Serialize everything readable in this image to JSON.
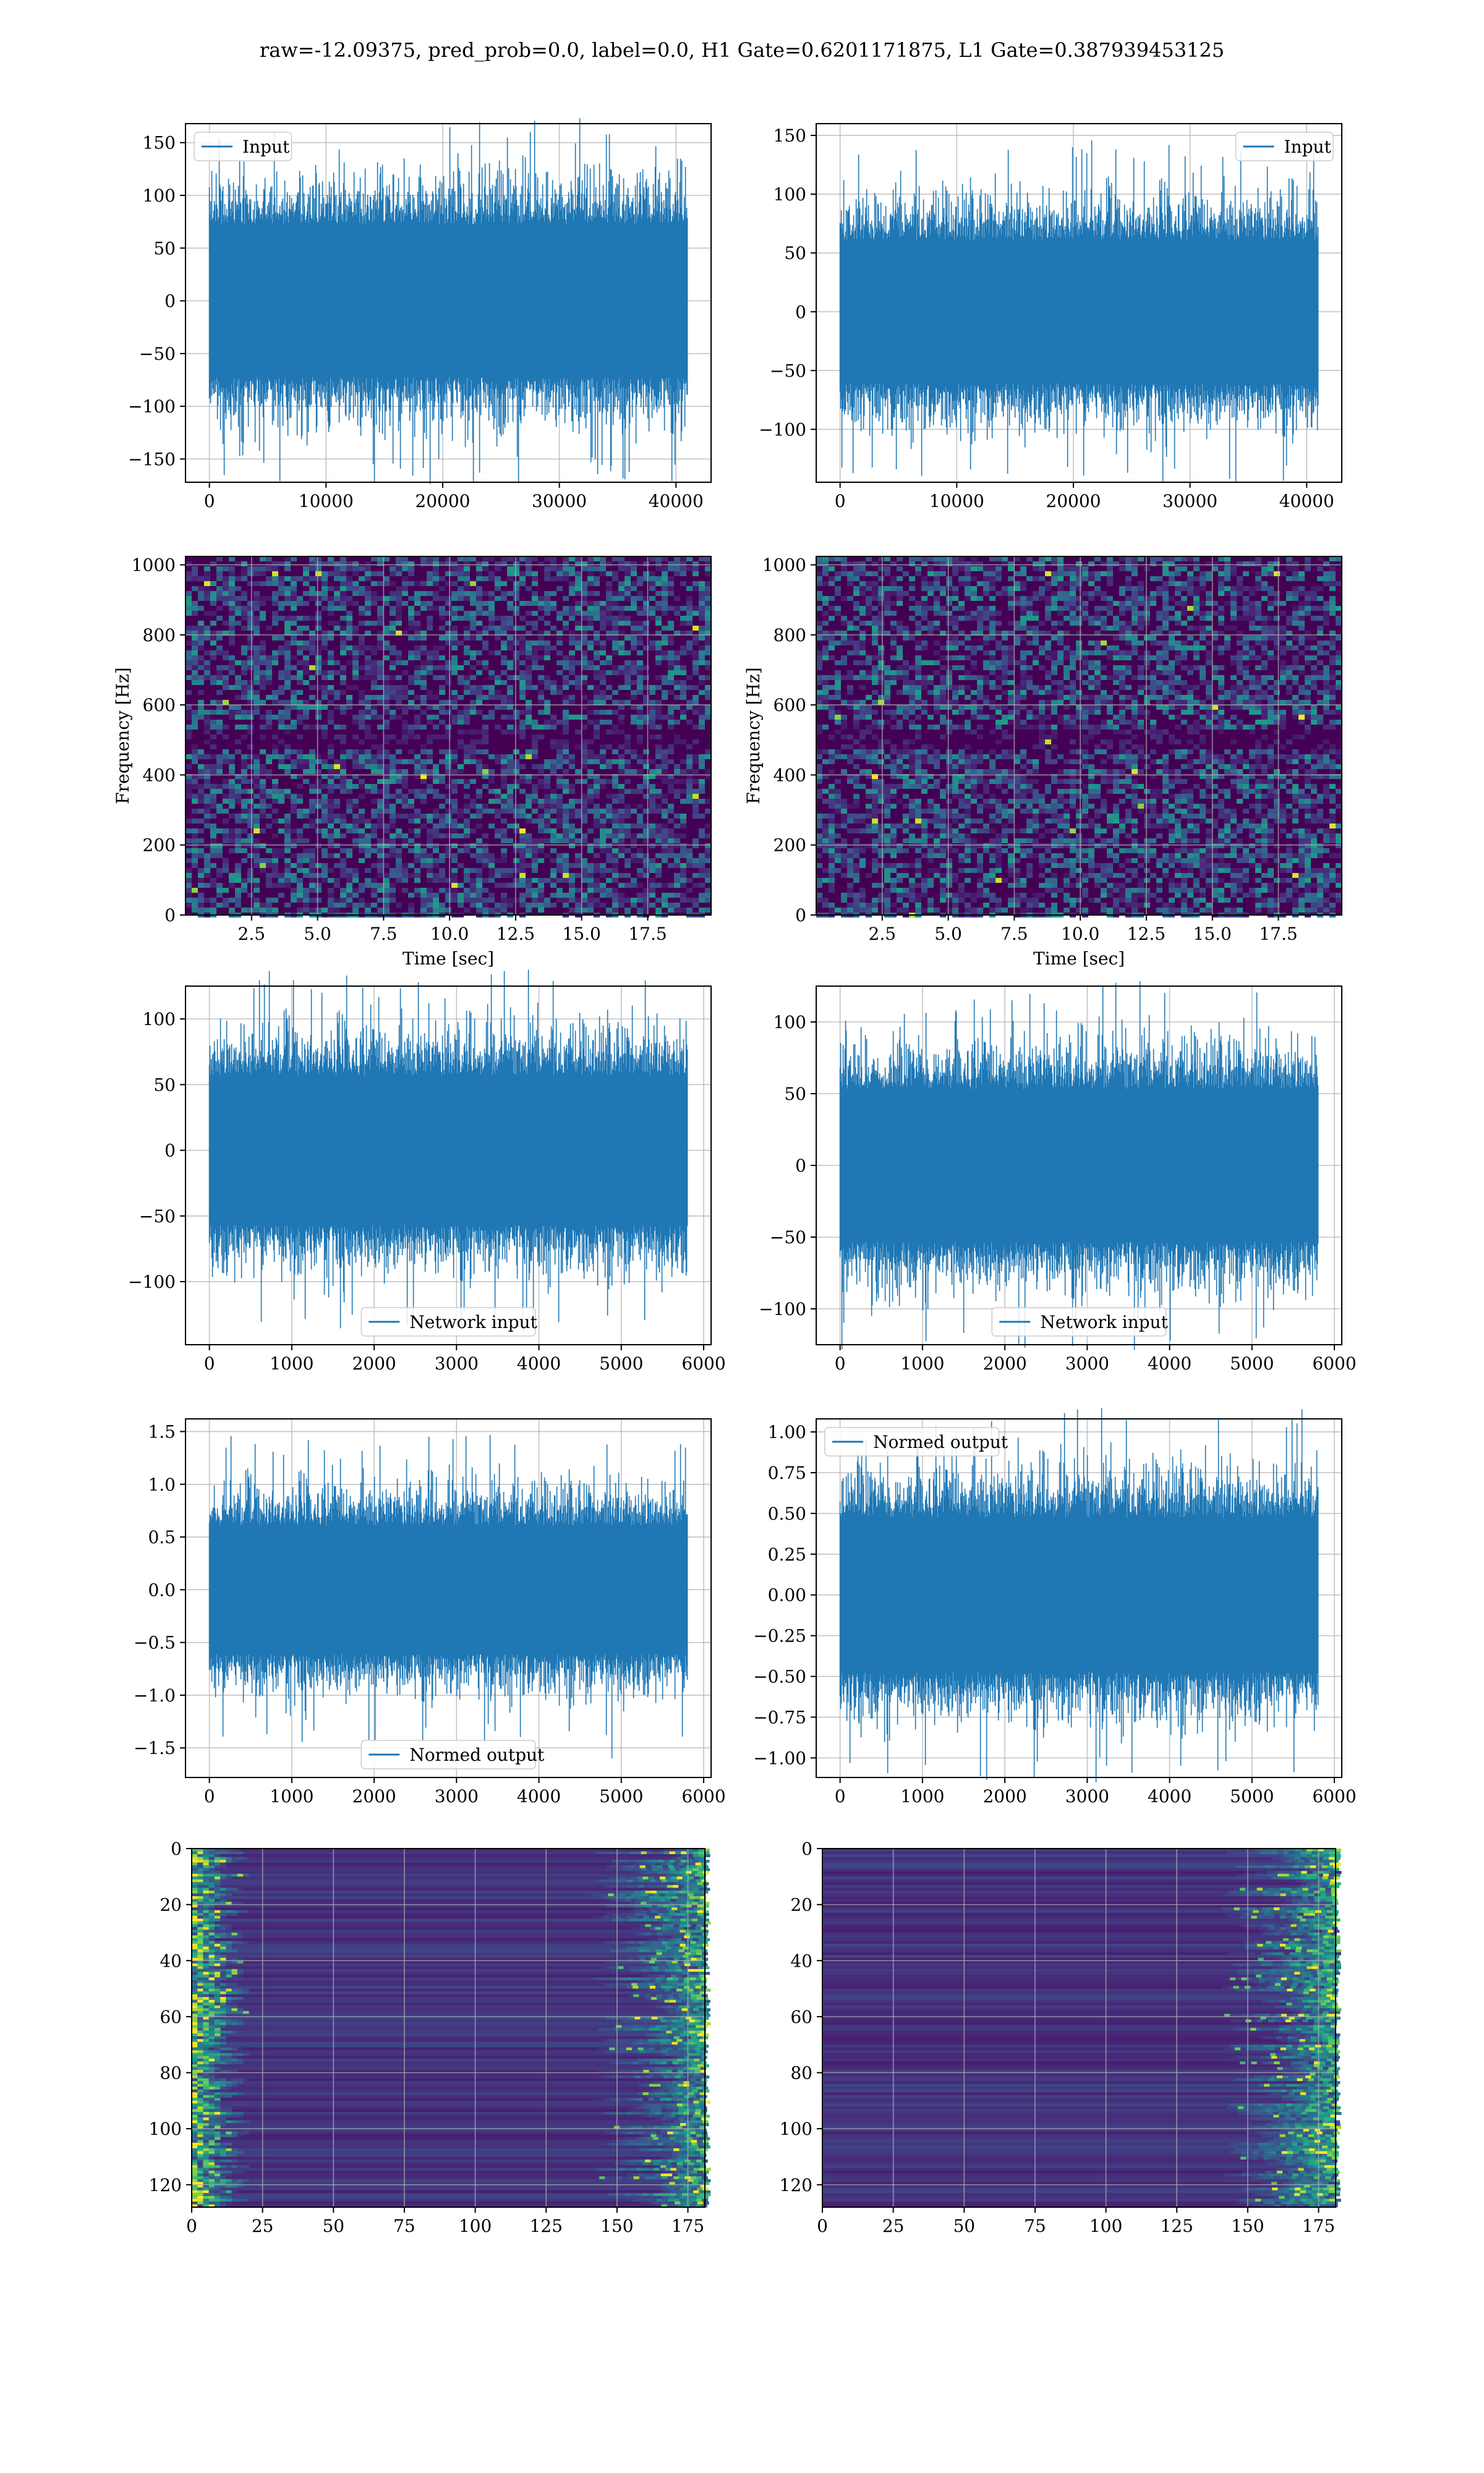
{
  "figure": {
    "suptitle": "raw=-12.09375, pred_prob=0.0, label=0.0, H1 Gate=0.6201171875, L1 Gate=0.387939453125"
  },
  "colors": {
    "line": "#1f77b4",
    "grid": "#b0b0b0",
    "axis": "#000000",
    "hot": "#fde725",
    "cool": "#440154"
  },
  "chart_data": [
    {
      "id": "p00",
      "type": "line",
      "series": [
        {
          "name": "Input",
          "n": 40960,
          "amp": 38,
          "peak": 155,
          "min": -155
        }
      ],
      "x": [
        0,
        40960
      ],
      "xlim": [
        -2048,
        43008
      ],
      "ylim": [
        -172,
        168
      ],
      "xticks": [
        0,
        10000,
        20000,
        30000,
        40000
      ],
      "xticklabels": [
        "0",
        "10000",
        "20000",
        "30000",
        "40000"
      ],
      "yticks": [
        -150,
        -100,
        -50,
        0,
        50,
        100,
        150
      ],
      "yticklabels": [
        "−150",
        "−100",
        "−50",
        "0",
        "50",
        "100",
        "150"
      ],
      "legend": {
        "loc": "upper left"
      },
      "grid": true
    },
    {
      "id": "p01",
      "type": "line",
      "series": [
        {
          "name": "Input",
          "n": 40960,
          "amp": 32,
          "peak": 140,
          "min": -132
        }
      ],
      "x": [
        0,
        40960
      ],
      "xlim": [
        -2048,
        43008
      ],
      "ylim": [
        -145,
        160
      ],
      "xticks": [
        0,
        10000,
        20000,
        30000,
        40000
      ],
      "xticklabels": [
        "0",
        "10000",
        "20000",
        "30000",
        "40000"
      ],
      "yticks": [
        -100,
        -50,
        0,
        50,
        100,
        150
      ],
      "yticklabels": [
        "−100",
        "−50",
        "0",
        "50",
        "100",
        "150"
      ],
      "legend": {
        "loc": "upper right"
      },
      "grid": true
    },
    {
      "id": "p10",
      "type": "heatmap",
      "xlabel": "Time [sec]",
      "ylabel": "Frequency [Hz]",
      "xlim": [
        0,
        19.9
      ],
      "ylim": [
        0,
        1024
      ],
      "band_hz": 512,
      "grid": true,
      "xticks": [
        2.5,
        5.0,
        7.5,
        10.0,
        12.5,
        15.0,
        17.5
      ],
      "xticklabels": [
        "2.5",
        "5.0",
        "7.5",
        "10.0",
        "12.5",
        "15.0",
        "17.5"
      ],
      "yticks": [
        0,
        200,
        400,
        600,
        800,
        1000
      ],
      "yticklabels": [
        "0",
        "200",
        "400",
        "600",
        "800",
        "1000"
      ]
    },
    {
      "id": "p11",
      "type": "heatmap",
      "xlabel": "Time [sec]",
      "ylabel": "Frequency [Hz]",
      "xlim": [
        0,
        19.9
      ],
      "ylim": [
        0,
        1024
      ],
      "band_hz": 512,
      "grid": true,
      "xticks": [
        2.5,
        5.0,
        7.5,
        10.0,
        12.5,
        15.0,
        17.5
      ],
      "xticklabels": [
        "2.5",
        "5.0",
        "7.5",
        "10.0",
        "12.5",
        "15.0",
        "17.5"
      ],
      "yticks": [
        0,
        200,
        400,
        600,
        800,
        1000
      ],
      "yticklabels": [
        "0",
        "200",
        "400",
        "600",
        "800",
        "1000"
      ]
    },
    {
      "id": "p20",
      "type": "line",
      "series": [
        {
          "name": "Network input",
          "n": 5800,
          "amp": 30,
          "peak": 112,
          "min": -135
        }
      ],
      "x": [
        0,
        5800
      ],
      "xlim": [
        -290,
        6090
      ],
      "ylim": [
        -148,
        125
      ],
      "xticks": [
        0,
        1000,
        2000,
        3000,
        4000,
        5000,
        6000
      ],
      "xticklabels": [
        "0",
        "1000",
        "2000",
        "3000",
        "4000",
        "5000",
        "6000"
      ],
      "yticks": [
        -100,
        -50,
        0,
        50,
        100
      ],
      "yticklabels": [
        "−100",
        "−50",
        "0",
        "50",
        "100"
      ],
      "legend": {
        "loc": "lower center"
      },
      "grid": true
    },
    {
      "id": "p21",
      "type": "line",
      "series": [
        {
          "name": "Network input",
          "n": 5800,
          "amp": 28,
          "peak": 113,
          "min": -113
        }
      ],
      "x": [
        0,
        5800
      ],
      "xlim": [
        -290,
        6090
      ],
      "ylim": [
        -125,
        125
      ],
      "xticks": [
        0,
        1000,
        2000,
        3000,
        4000,
        5000,
        6000
      ],
      "xticklabels": [
        "0",
        "1000",
        "2000",
        "3000",
        "4000",
        "5000",
        "6000"
      ],
      "yticks": [
        -100,
        -50,
        0,
        50,
        100
      ],
      "yticklabels": [
        "−100",
        "−50",
        "0",
        "50",
        "100"
      ],
      "legend": {
        "loc": "lower center"
      },
      "grid": true
    },
    {
      "id": "p30",
      "type": "line",
      "series": [
        {
          "name": "Normed output",
          "n": 5800,
          "amp": 0.32,
          "peak": 1.45,
          "min": -1.6
        }
      ],
      "x": [
        0,
        5800
      ],
      "xlim": [
        -290,
        6090
      ],
      "ylim": [
        -1.78,
        1.62
      ],
      "xticks": [
        0,
        1000,
        2000,
        3000,
        4000,
        5000,
        6000
      ],
      "xticklabels": [
        "0",
        "1000",
        "2000",
        "3000",
        "4000",
        "5000",
        "6000"
      ],
      "yticks": [
        -1.5,
        -1.0,
        -0.5,
        0.0,
        0.5,
        1.0,
        1.5
      ],
      "yticklabels": [
        "−1.5",
        "−1.0",
        "−0.5",
        "0.0",
        "0.5",
        "1.0",
        "1.5"
      ],
      "legend": {
        "loc": "lower center"
      },
      "grid": true
    },
    {
      "id": "p31",
      "type": "line",
      "series": [
        {
          "name": "Normed output",
          "n": 5800,
          "amp": 0.25,
          "peak": 1.0,
          "min": -1.02
        }
      ],
      "x": [
        0,
        5800
      ],
      "xlim": [
        -290,
        6090
      ],
      "ylim": [
        -1.12,
        1.08
      ],
      "xticks": [
        0,
        1000,
        2000,
        3000,
        4000,
        5000,
        6000
      ],
      "xticklabels": [
        "0",
        "1000",
        "2000",
        "3000",
        "4000",
        "5000",
        "6000"
      ],
      "yticks": [
        -1.0,
        -0.75,
        -0.5,
        -0.25,
        0.0,
        0.25,
        0.5,
        0.75,
        1.0
      ],
      "yticklabels": [
        "−1.00",
        "−0.75",
        "−0.50",
        "−0.25",
        "0.00",
        "0.25",
        "0.50",
        "0.75",
        "1.00"
      ],
      "legend": {
        "loc": "upper left"
      },
      "grid": true
    },
    {
      "id": "p40",
      "type": "heatmap",
      "rows": 128,
      "cols": 180,
      "xlim": [
        0,
        181
      ],
      "ylim": [
        128,
        0
      ],
      "hot_cols": "left and right edges",
      "grid": true,
      "xticks": [
        0,
        25,
        50,
        75,
        100,
        125,
        150,
        175
      ],
      "xticklabels": [
        "0",
        "25",
        "50",
        "75",
        "100",
        "125",
        "150",
        "175"
      ],
      "yticks": [
        0,
        20,
        40,
        60,
        80,
        100,
        120
      ],
      "yticklabels": [
        "0",
        "20",
        "40",
        "60",
        "80",
        "100",
        "120"
      ]
    },
    {
      "id": "p41",
      "type": "heatmap",
      "rows": 128,
      "cols": 180,
      "xlim": [
        0,
        181
      ],
      "ylim": [
        128,
        0
      ],
      "hot_cols": "right edge",
      "grid": true,
      "xticks": [
        0,
        25,
        50,
        75,
        100,
        125,
        150,
        175
      ],
      "xticklabels": [
        "0",
        "25",
        "50",
        "75",
        "100",
        "125",
        "150",
        "175"
      ],
      "yticks": [
        0,
        20,
        40,
        60,
        80,
        100,
        120
      ],
      "yticklabels": [
        "0",
        "20",
        "40",
        "60",
        "80",
        "100",
        "120"
      ]
    }
  ]
}
